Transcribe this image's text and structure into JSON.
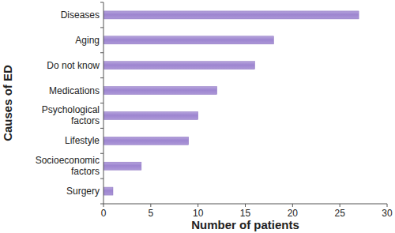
{
  "chart_data": {
    "type": "bar",
    "orientation": "horizontal",
    "x_label": "Number of patients",
    "y_label": "Causes of ED",
    "categories": [
      "Diseases",
      "Aging",
      "Do not know",
      "Medications",
      "Psychological factors",
      "Lifestyle",
      "Socioeconomic factors",
      "Surgery"
    ],
    "values": [
      27,
      18,
      16,
      12,
      10,
      9,
      4,
      1
    ],
    "color": "#9d85d0",
    "xlim": [
      0,
      30
    ],
    "xticks": [
      0,
      5,
      10,
      15,
      20,
      25,
      30
    ],
    "grid": false
  }
}
